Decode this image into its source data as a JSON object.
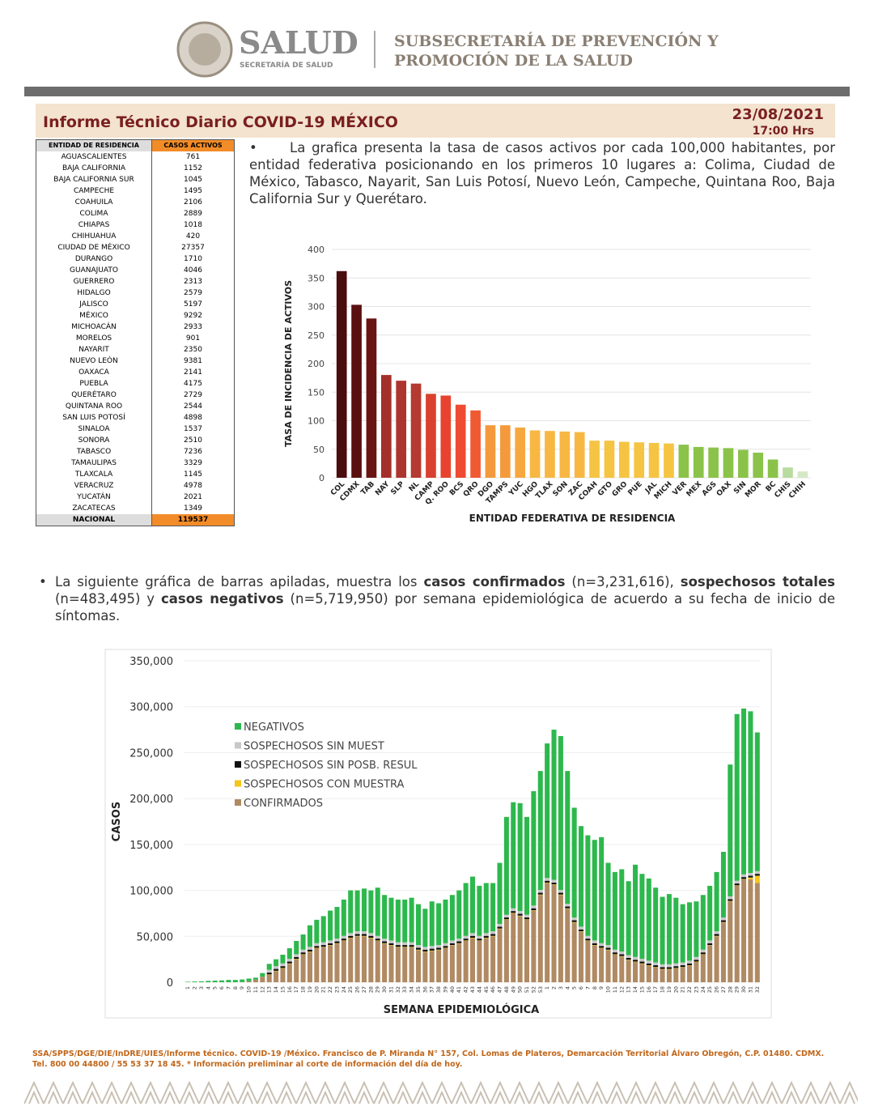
{
  "header": {
    "brand": "SALUD",
    "brand_sub": "SECRETARÍA DE SALUD",
    "office_line1": "SUBSECRETARÍA DE PREVENCIÓN Y",
    "office_line2": "PROMOCIÓN DE LA SALUD"
  },
  "report": {
    "title": "Informe Técnico Diario COVID-19 MÉXICO",
    "date": "23/08/2021",
    "time": "17:00 Hrs"
  },
  "table": {
    "headers": [
      "ENTIDAD DE RESIDENCIA",
      "CASOS ACTIVOS"
    ],
    "rows": [
      [
        "AGUASCALIENTES",
        761
      ],
      [
        "BAJA CALIFORNIA",
        1152
      ],
      [
        "BAJA CALIFORNIA SUR",
        1045
      ],
      [
        "CAMPECHE",
        1495
      ],
      [
        "COAHUILA",
        2106
      ],
      [
        "COLIMA",
        2889
      ],
      [
        "CHIAPAS",
        1018
      ],
      [
        "CHIHUAHUA",
        420
      ],
      [
        "CIUDAD DE MÉXICO",
        27357
      ],
      [
        "DURANGO",
        1710
      ],
      [
        "GUANAJUATO",
        4046
      ],
      [
        "GUERRERO",
        2313
      ],
      [
        "HIDALGO",
        2579
      ],
      [
        "JALISCO",
        5197
      ],
      [
        "MÉXICO",
        9292
      ],
      [
        "MICHOACÁN",
        2933
      ],
      [
        "MORELOS",
        901
      ],
      [
        "NAYARIT",
        2350
      ],
      [
        "NUEVO LEÓN",
        9381
      ],
      [
        "OAXACA",
        2141
      ],
      [
        "PUEBLA",
        4175
      ],
      [
        "QUERÉTARO",
        2729
      ],
      [
        "QUINTANA ROO",
        2544
      ],
      [
        "SAN LUIS POTOSÍ",
        4898
      ],
      [
        "SINALOA",
        1537
      ],
      [
        "SONORA",
        2510
      ],
      [
        "TABASCO",
        7236
      ],
      [
        "TAMAULIPAS",
        3329
      ],
      [
        "TLAXCALA",
        1145
      ],
      [
        "VERACRUZ",
        4978
      ],
      [
        "YUCATÁN",
        2021
      ],
      [
        "ZACATECAS",
        1349
      ]
    ],
    "total": [
      "NACIONAL",
      119537
    ]
  },
  "paragraph1": "La grafica presenta la tasa de casos activos por cada 100,000 habitantes, por entidad federativa posicionando en los primeros 10 lugares a: Colima, Ciudad de México, Tabasco, Nayarit, San Luis Potosí, Nuevo León, Campeche, Quintana Roo, Baja California Sur y Querétaro.",
  "paragraph2": [
    "La siguiente gráfica de barras apiladas, muestra los ",
    "casos confirmados",
    " (n=3,231,616), ",
    "sospechosos totales",
    " (n=483,495) y ",
    "casos negativos",
    " (n=5,719,950) por semana epidemiológica de acuerdo a su fecha de inicio de síntomas."
  ],
  "footer": [
    "SSA/SPPS/DGE/DIE/InDRE/UIES/Informe técnico. COVID-19 /México. Francisco de P. Miranda N° 157, Col. Lomas de Plateros, Demarcación Territorial Álvaro Obregón, C.P. 01480. CDMX.",
    "Tel. 800 00 44800 / 55 53 37 18 45. * Información preliminar al corte de información del día de hoy."
  ],
  "chart_data": [
    {
      "type": "bar",
      "ylabel": "TASA DE INCIDENCIA DE ACTIVOS",
      "xlabel": "ENTIDAD FEDERATIVA DE RESIDENCIA",
      "categories": [
        "COL",
        "CDMX",
        "TAB",
        "NAY",
        "SLP",
        "NL",
        "CAMP",
        "Q. ROO",
        "BCS",
        "QRO",
        "DGO",
        "TAMPS",
        "YUC",
        "HGO",
        "TLAX",
        "SON",
        "ZAC",
        "COAH",
        "GTO",
        "GRO",
        "PUE",
        "JAL",
        "MICH",
        "VER",
        "MEX",
        "AGS",
        "OAX",
        "SIN",
        "MOR",
        "BC",
        "CHIS",
        "CHIH"
      ],
      "values": [
        362,
        303,
        279,
        180,
        170,
        165,
        147,
        144,
        128,
        118,
        92,
        92,
        88,
        83,
        82,
        81,
        80,
        65,
        65,
        63,
        62,
        61,
        60,
        58,
        54,
        53,
        52,
        49,
        44,
        32,
        18,
        11
      ],
      "colors": [
        "#4a0d0d",
        "#5a1010",
        "#6a1414",
        "#a3302a",
        "#ad3530",
        "#b53a32",
        "#d9412e",
        "#e8432e",
        "#ef4b32",
        "#f05a32",
        "#f49a3c",
        "#f49a3c",
        "#f6a83e",
        "#f8b743",
        "#f8b743",
        "#f8b743",
        "#f8b743",
        "#f5c443",
        "#f5c443",
        "#f5c443",
        "#f5c443",
        "#f5c443",
        "#f5c443",
        "#8bc34a",
        "#8bc34a",
        "#8bc34a",
        "#8bc34a",
        "#8bc34a",
        "#8bc34a",
        "#8bc34a",
        "#b8dba0",
        "#d4e8c4"
      ],
      "ylim": [
        0,
        400
      ],
      "yticks": [
        0,
        50,
        100,
        150,
        200,
        250,
        300,
        350,
        400
      ],
      "grid": true
    },
    {
      "type": "stacked_bar",
      "ylabel": "CASOS",
      "xlabel": "SEMANA EPIDEMIOLÓGICA",
      "categories": [
        "1",
        "2",
        "3",
        "4",
        "5",
        "6",
        "7",
        "8",
        "9",
        "10",
        "11",
        "12",
        "13",
        "14",
        "15",
        "16",
        "17",
        "18",
        "19",
        "20",
        "21",
        "22",
        "23",
        "24",
        "25",
        "26",
        "27",
        "28",
        "29",
        "30",
        "31",
        "32",
        "33",
        "34",
        "35",
        "36",
        "37",
        "38",
        "39",
        "40",
        "41",
        "42",
        "43",
        "44",
        "45",
        "46",
        "47",
        "48",
        "49",
        "50",
        "51",
        "52",
        "53",
        "1",
        "2",
        "3",
        "4",
        "5",
        "6",
        "7",
        "8",
        "9",
        "10",
        "11",
        "12",
        "13",
        "14",
        "15",
        "16",
        "17",
        "18",
        "19",
        "20",
        "21",
        "22",
        "23",
        "24",
        "25",
        "26",
        "27",
        "28",
        "29",
        "30",
        "31",
        "32"
      ],
      "series": [
        {
          "name": "NEGATIVOS",
          "color": "#2db84d",
          "values": [
            500,
            800,
            1000,
            1500,
            1800,
            2000,
            2500,
            2500,
            2800,
            3000,
            2000,
            4000,
            6500,
            7500,
            9500,
            11500,
            14500,
            16500,
            23500,
            25500,
            28500,
            32500,
            34500,
            39500,
            46500,
            44500,
            46500,
            46500,
            52500,
            47500,
            46500,
            46500,
            46500,
            48500,
            44500,
            41500,
            48500,
            45500,
            47500,
            49500,
            52500,
            57500,
            61500,
            54500,
            54500,
            52500,
            66500,
            106500,
            115500,
            117500,
            106500,
            124500,
            129500,
            146500,
            163500,
            167500,
            144500,
            119500,
            109500,
            109500,
            109500,
            115500,
            89500,
            84500,
            89500,
            80500,
            100500,
            92500,
            89500,
            81500,
            73500,
            76500,
            71500,
            63500,
            63500,
            60500,
            59500,
            59500,
            64500,
            71500,
            143500,
            181500,
            180500,
            176000,
            151000
          ]
        },
        {
          "name": "SOSPECHOSOS SIN MUEST",
          "color": "#c8c8c8",
          "values": [
            0,
            0,
            0,
            0,
            0,
            0,
            0,
            0,
            0,
            0,
            0,
            0,
            3000,
            3000,
            3000,
            3000,
            3000,
            3000,
            3000,
            3000,
            3000,
            3000,
            3000,
            3000,
            3000,
            3000,
            3000,
            3000,
            3000,
            3000,
            3000,
            3000,
            3000,
            3000,
            3000,
            3000,
            3000,
            3000,
            3000,
            3000,
            3000,
            3000,
            3000,
            3000,
            3000,
            3000,
            3000,
            3000,
            3000,
            3000,
            3000,
            3000,
            3000,
            3000,
            3000,
            3000,
            3000,
            3000,
            3000,
            3000,
            3000,
            3000,
            3000,
            3000,
            3000,
            3000,
            3000,
            3000,
            3000,
            3000,
            3000,
            3000,
            3000,
            3000,
            3000,
            3000,
            3000,
            3000,
            3000,
            3000,
            3000,
            3000,
            3000,
            3000,
            3000
          ]
        },
        {
          "name": "SOSPECHOSOS SIN POSB. RESUL",
          "color": "#111111",
          "values": [
            0,
            0,
            0,
            0,
            0,
            0,
            0,
            0,
            0,
            0,
            0,
            0,
            2000,
            2000,
            2000,
            2000,
            2000,
            2000,
            2000,
            2000,
            2000,
            2000,
            2000,
            2000,
            2000,
            2000,
            2000,
            2000,
            2000,
            2000,
            2000,
            2000,
            2000,
            2000,
            2000,
            2000,
            2000,
            2000,
            2000,
            2000,
            2000,
            2000,
            2000,
            2000,
            2000,
            2000,
            2000,
            2000,
            2000,
            2000,
            2000,
            2000,
            2000,
            2000,
            2000,
            2000,
            2000,
            2000,
            2000,
            2000,
            2000,
            2000,
            2000,
            2000,
            2000,
            2000,
            2000,
            2000,
            2000,
            2000,
            2000,
            2000,
            2000,
            2000,
            2000,
            2000,
            2000,
            2000,
            2000,
            2000,
            2000,
            2000,
            2000,
            2000,
            2000
          ]
        },
        {
          "name": "SOSPECHOSOS CON MUESTRA",
          "color": "#f5c518",
          "values": [
            0,
            0,
            0,
            0,
            0,
            0,
            0,
            0,
            0,
            0,
            0,
            0,
            500,
            500,
            500,
            500,
            500,
            500,
            500,
            500,
            500,
            500,
            500,
            500,
            500,
            500,
            500,
            500,
            500,
            500,
            500,
            500,
            500,
            500,
            500,
            500,
            500,
            500,
            500,
            500,
            500,
            500,
            500,
            500,
            500,
            500,
            500,
            500,
            500,
            500,
            500,
            500,
            500,
            500,
            500,
            500,
            500,
            500,
            500,
            500,
            500,
            500,
            500,
            500,
            500,
            500,
            500,
            500,
            500,
            500,
            500,
            500,
            500,
            500,
            500,
            500,
            500,
            500,
            500,
            500,
            500,
            500,
            500,
            2000,
            8000
          ]
        },
        {
          "name": "CONFIRMADOS",
          "color": "#b08a63",
          "values": [
            0,
            0,
            0,
            0,
            0,
            0,
            0,
            0,
            200,
            1000,
            3000,
            6000,
            8000,
            12000,
            15000,
            20000,
            25000,
            30000,
            33000,
            37000,
            38000,
            40000,
            42000,
            45000,
            48000,
            50000,
            50000,
            48000,
            45000,
            42000,
            40000,
            38000,
            38000,
            38000,
            35000,
            33000,
            34000,
            35000,
            37000,
            40000,
            42000,
            45000,
            48000,
            45000,
            48000,
            50000,
            58000,
            68000,
            75000,
            72000,
            68000,
            78000,
            95000,
            108000,
            106000,
            95000,
            80000,
            65000,
            55000,
            45000,
            40000,
            37000,
            35000,
            30000,
            28000,
            24000,
            22000,
            20000,
            18000,
            16000,
            14000,
            14000,
            15000,
            16000,
            18000,
            22000,
            30000,
            40000,
            50000,
            65000,
            88000,
            105000,
            112000,
            112000,
            108000
          ]
        }
      ],
      "ylim": [
        0,
        350000
      ],
      "yticks": [
        0,
        {
          "value": 50000,
          "label": "50,000"
        },
        {
          "value": 100000,
          "label": "100,000"
        },
        {
          "value": 150000,
          "label": "150,000"
        },
        {
          "value": 200000,
          "label": "200,000"
        },
        {
          "value": 250000,
          "label": "250,000"
        },
        {
          "value": 300000,
          "label": "300,000"
        },
        {
          "value": 350000,
          "label": "350,000"
        }
      ],
      "grid": true
    }
  ]
}
